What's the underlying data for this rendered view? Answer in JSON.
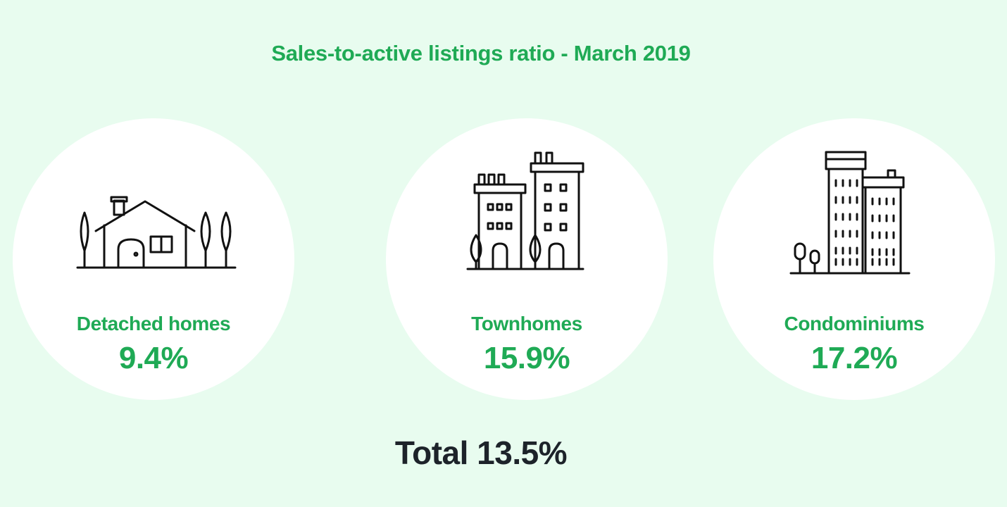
{
  "title": "Sales-to-active listings ratio - March 2019",
  "categories": [
    {
      "label": "Detached homes",
      "value": "9.4%",
      "icon": "detached-house-icon"
    },
    {
      "label": "Townhomes",
      "value": "15.9%",
      "icon": "townhouses-icon"
    },
    {
      "label": "Condominiums",
      "value": "17.2%",
      "icon": "condo-towers-icon"
    }
  ],
  "total": "Total 13.5%",
  "colors": {
    "background": "#e8fcef",
    "accent": "#1faa55",
    "total_text": "#1d232a",
    "card": "#ffffff"
  }
}
